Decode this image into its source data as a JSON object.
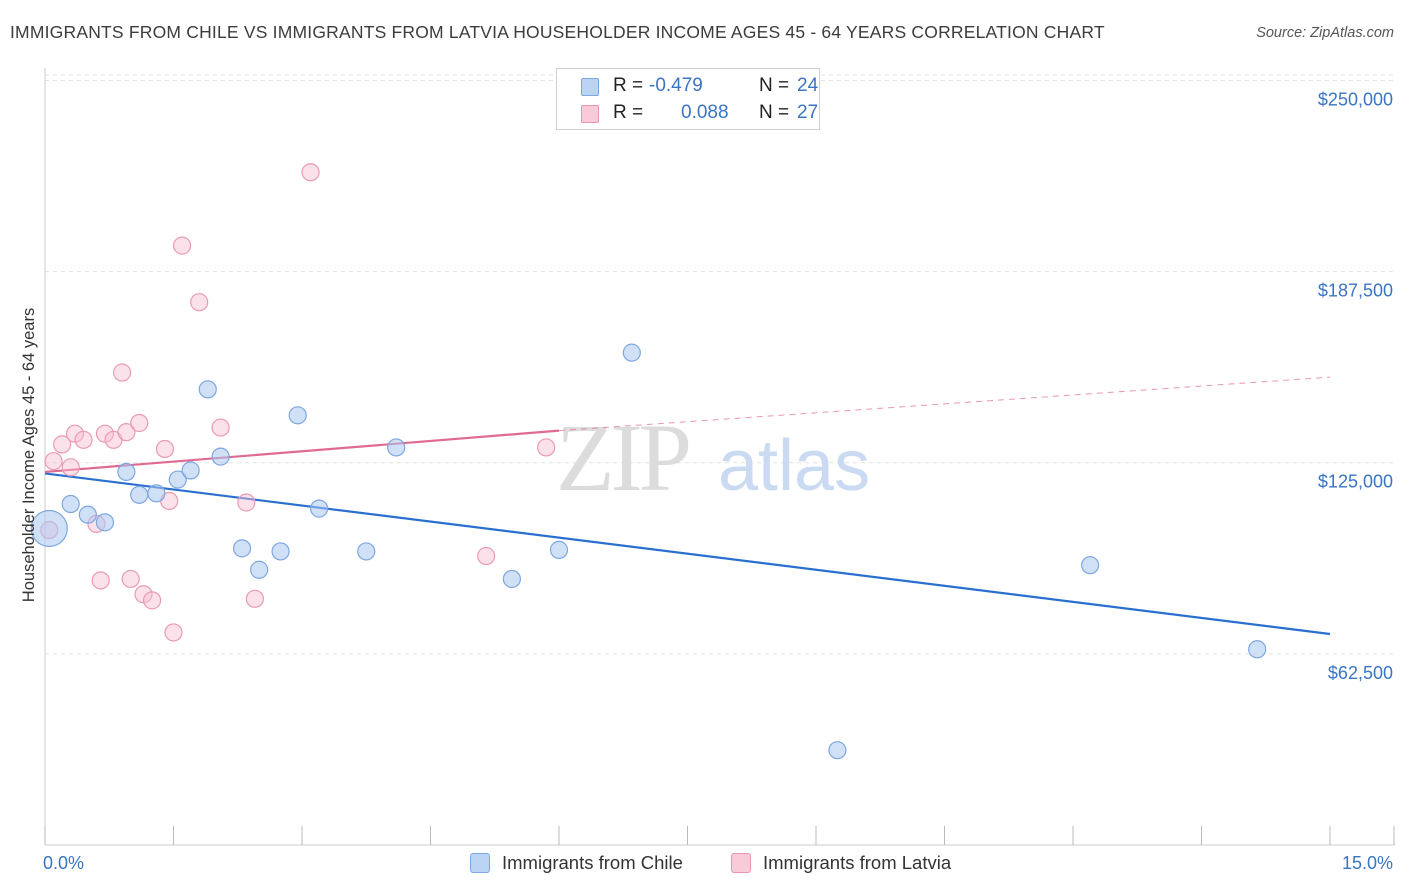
{
  "header": {
    "title": "IMMIGRANTS FROM CHILE VS IMMIGRANTS FROM LATVIA HOUSEHOLDER INCOME AGES 45 - 64 YEARS CORRELATION CHART",
    "source": "Source: ZipAtlas.com"
  },
  "watermark": {
    "zip": "ZIP",
    "atlas": "atlas"
  },
  "legend": {
    "rows": [
      {
        "r_label": "R =",
        "r_value": "-0.479",
        "n_label": "N =",
        "n_value": "24"
      },
      {
        "r_label": "R =",
        "r_value": "0.088",
        "n_label": "N =",
        "n_value": "27"
      }
    ]
  },
  "bottom_legend": {
    "chile": "Immigrants from Chile",
    "latvia": "Immigrants from Latvia"
  },
  "chart_data": {
    "type": "scatter",
    "title": "IMMIGRANTS FROM CHILE VS IMMIGRANTS FROM LATVIA HOUSEHOLDER INCOME AGES 45 - 64 YEARS CORRELATION CHART",
    "xlabel": "",
    "ylabel": "Householder Income Ages 45 - 64 years",
    "xlim": [
      0,
      15
    ],
    "ylim": [
      0,
      250000
    ],
    "x_ticks": [
      "0.0%",
      "15.0%"
    ],
    "y_ticks": [
      {
        "value": 250000,
        "label": "$250,000"
      },
      {
        "value": 187500,
        "label": "$187,500"
      },
      {
        "value": 125000,
        "label": "$125,000"
      },
      {
        "value": 62500,
        "label": "$62,500"
      }
    ],
    "colors": {
      "chile": "#a9c8f0",
      "chile_line": "#2a6fd0",
      "latvia": "#f7bfd0",
      "latvia_line": "#e06a92"
    },
    "series": [
      {
        "name": "Immigrants from Chile",
        "points": [
          {
            "x": 0.05,
            "y": 103500,
            "size": "large"
          },
          {
            "x": 0.3,
            "y": 111500
          },
          {
            "x": 0.5,
            "y": 108000
          },
          {
            "x": 0.7,
            "y": 105500
          },
          {
            "x": 0.95,
            "y": 122000
          },
          {
            "x": 1.1,
            "y": 114500
          },
          {
            "x": 1.3,
            "y": 115000
          },
          {
            "x": 1.55,
            "y": 119500
          },
          {
            "x": 1.7,
            "y": 122500
          },
          {
            "x": 1.9,
            "y": 149000
          },
          {
            "x": 2.05,
            "y": 127000
          },
          {
            "x": 2.3,
            "y": 97000
          },
          {
            "x": 2.5,
            "y": 90000
          },
          {
            "x": 2.75,
            "y": 96000
          },
          {
            "x": 2.95,
            "y": 140500
          },
          {
            "x": 3.2,
            "y": 110000
          },
          {
            "x": 3.75,
            "y": 96000
          },
          {
            "x": 4.1,
            "y": 130000
          },
          {
            "x": 5.45,
            "y": 87000
          },
          {
            "x": 6.0,
            "y": 96500
          },
          {
            "x": 6.85,
            "y": 161000
          },
          {
            "x": 9.25,
            "y": 31000
          },
          {
            "x": 12.2,
            "y": 91500
          },
          {
            "x": 14.15,
            "y": 64000
          }
        ],
        "trend": {
          "x0": 0,
          "y0": 121500,
          "x1": 15,
          "y1": 69000
        }
      },
      {
        "name": "Immigrants from Latvia",
        "points": [
          {
            "x": 0.05,
            "y": 103000
          },
          {
            "x": 0.1,
            "y": 125500
          },
          {
            "x": 0.2,
            "y": 131000
          },
          {
            "x": 0.3,
            "y": 123500
          },
          {
            "x": 0.35,
            "y": 134500
          },
          {
            "x": 0.45,
            "y": 132500
          },
          {
            "x": 0.6,
            "y": 105000
          },
          {
            "x": 0.65,
            "y": 86500
          },
          {
            "x": 0.7,
            "y": 134500
          },
          {
            "x": 0.8,
            "y": 132500
          },
          {
            "x": 0.9,
            "y": 154500
          },
          {
            "x": 0.95,
            "y": 135000
          },
          {
            "x": 1.0,
            "y": 87000
          },
          {
            "x": 1.1,
            "y": 138000
          },
          {
            "x": 1.15,
            "y": 82000
          },
          {
            "x": 1.25,
            "y": 80000
          },
          {
            "x": 1.4,
            "y": 129500
          },
          {
            "x": 1.45,
            "y": 112500
          },
          {
            "x": 1.5,
            "y": 69500
          },
          {
            "x": 1.6,
            "y": 196000
          },
          {
            "x": 1.8,
            "y": 177500
          },
          {
            "x": 2.05,
            "y": 136500
          },
          {
            "x": 2.35,
            "y": 112000
          },
          {
            "x": 2.45,
            "y": 80500
          },
          {
            "x": 3.1,
            "y": 220000
          },
          {
            "x": 5.15,
            "y": 94500
          },
          {
            "x": 5.85,
            "y": 130000
          }
        ],
        "trend": {
          "x0": 0,
          "y0": 122000,
          "x1": 6.0,
          "y1": 135500,
          "dash_to_x": 15,
          "dash_to_y": 153000
        }
      }
    ]
  }
}
